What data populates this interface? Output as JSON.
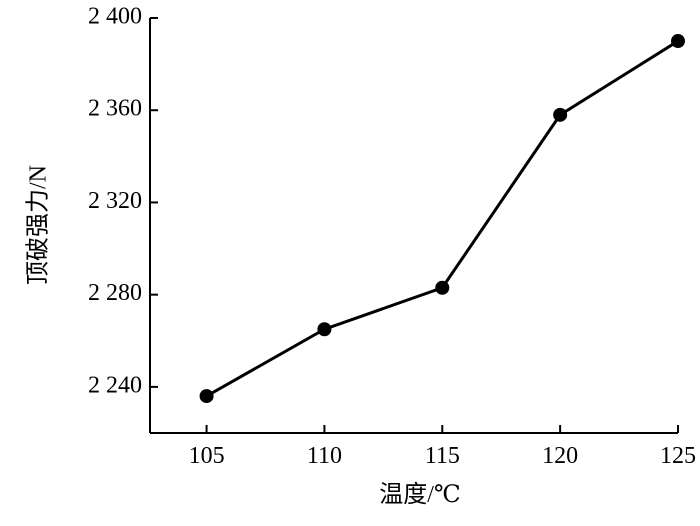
{
  "chart_data": {
    "type": "line",
    "x_label": "温度/℃",
    "y_label": "顶破强力/N",
    "x": [
      105,
      110,
      115,
      120,
      125
    ],
    "series": [
      {
        "color": "#000000",
        "values": [
          2236,
          2265,
          2283,
          2358,
          2390
        ]
      }
    ],
    "xlim": [
      102.6,
      125
    ],
    "xticks": [
      105,
      110,
      115,
      120,
      125
    ],
    "ylim": [
      2220,
      2400
    ],
    "yticks": [
      {
        "value": 2240,
        "label": "2 240"
      },
      {
        "value": 2280,
        "label": "2 280"
      },
      {
        "value": 2320,
        "label": "2 320"
      },
      {
        "value": 2360,
        "label": "2 360"
      },
      {
        "value": 2400,
        "label": "2 400"
      }
    ],
    "grid": false
  }
}
